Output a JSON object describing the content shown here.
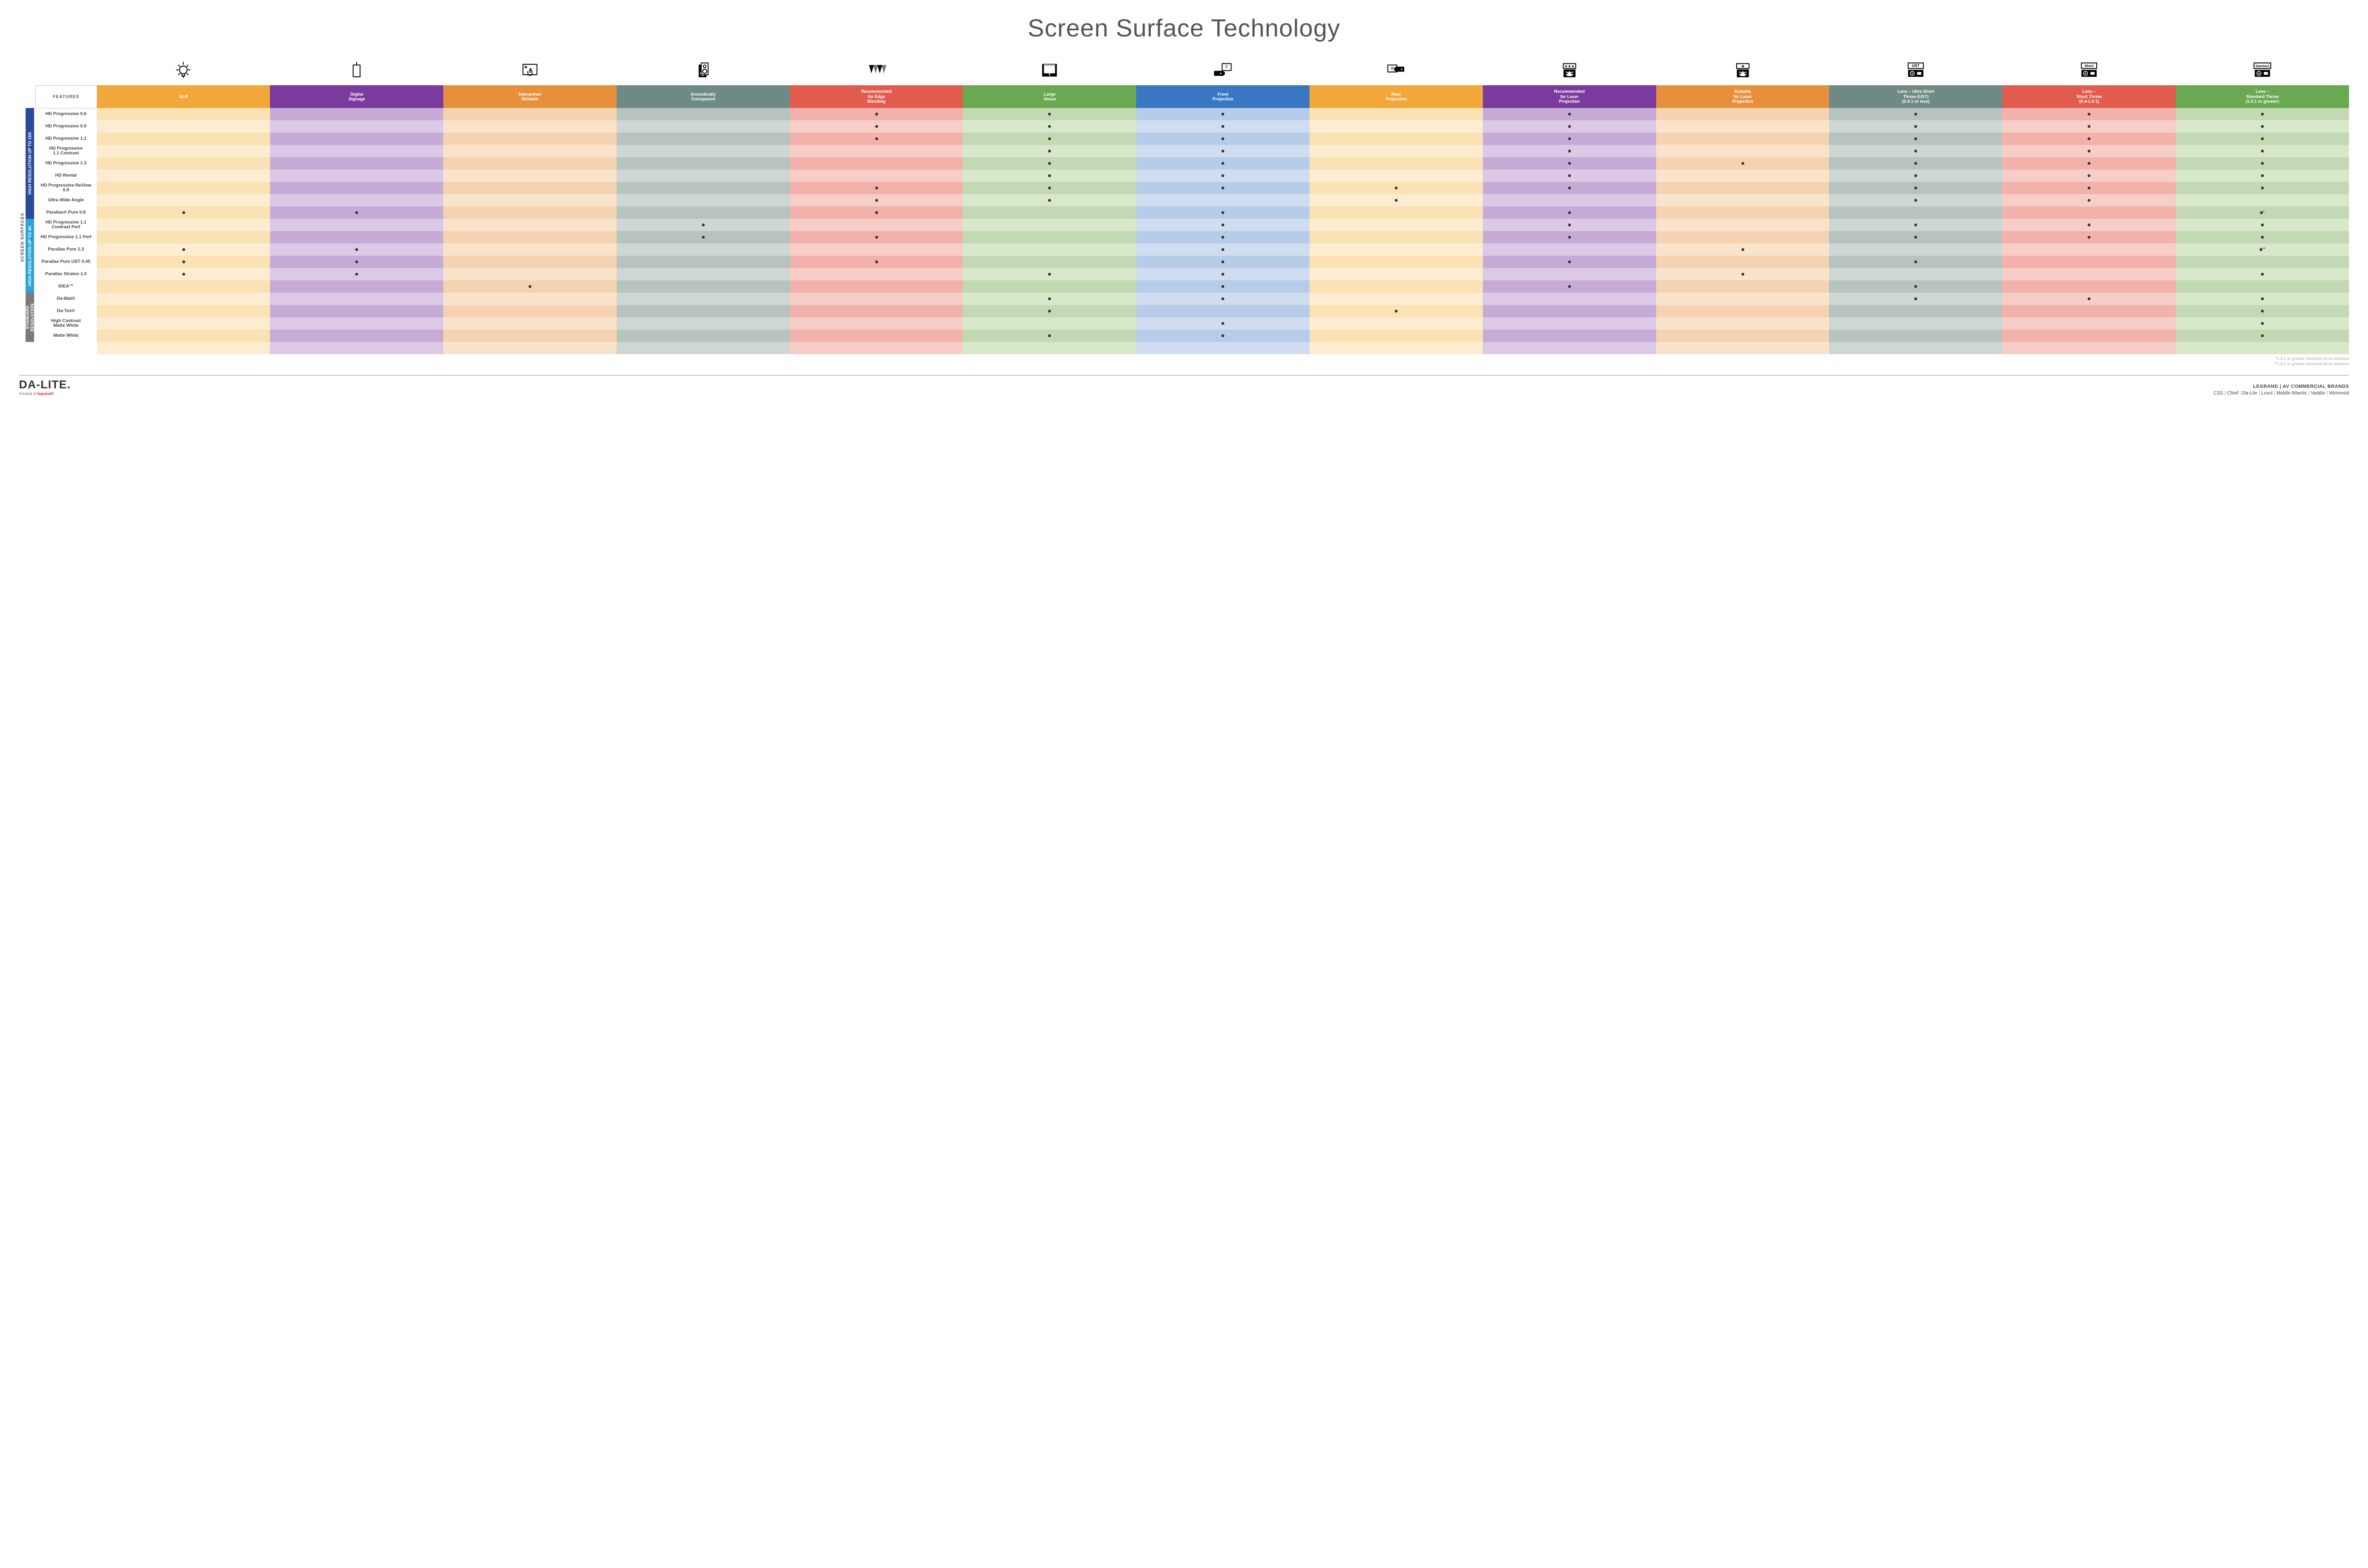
{
  "title": "Screen Surface Technology",
  "outer_label": "SCREEN SURFACES",
  "categories": [
    {
      "label": "HIGH RESOLUTION UP TO 16K",
      "bg": "#2a4b9b",
      "rows": 9
    },
    {
      "label": "HIGH RESOLUTION UP TO 4K",
      "bg": "#29a3d9",
      "rows": 6
    },
    {
      "label": "STANDARD\nRESOLUTION",
      "bg": "#7a7a7a",
      "rows": 4
    }
  ],
  "features_header": "FEATURES",
  "columns": [
    {
      "label": "ALR",
      "color": "#f2a73b",
      "light": "#fbe2b5",
      "lighter": "#fdeccf"
    },
    {
      "label": "Digital\nSignage",
      "color": "#7b3b9e",
      "light": "#c6abd6",
      "lighter": "#dbc9e6"
    },
    {
      "label": "Interactive/\nWritable",
      "color": "#e7903c",
      "light": "#f5d3b1",
      "lighter": "#f9e3cb"
    },
    {
      "label": "Acoustically\nTransparent",
      "color": "#6f8a84",
      "light": "#b6c3bf",
      "lighter": "#cfd7d4"
    },
    {
      "label": "Recommended\nfor Edge\nBlending",
      "color": "#e25b4f",
      "light": "#f2b1aa",
      "lighter": "#f7cdc8"
    },
    {
      "label": "Large\nVenue",
      "color": "#6aa851",
      "light": "#c3d9b3",
      "lighter": "#d9e7cb"
    },
    {
      "label": "Front\nProjection",
      "color": "#3a77c2",
      "light": "#b6cce8",
      "lighter": "#d0ddf0"
    },
    {
      "label": "Rear\nProjection",
      "color": "#f2a73b",
      "light": "#fbe2b5",
      "lighter": "#fdeccf"
    },
    {
      "label": "Recommended\nfor Laser\nProjection",
      "color": "#7b3b9e",
      "light": "#c6abd6",
      "lighter": "#dbc9e6"
    },
    {
      "label": "Suitable\nfor Laser\nProjection",
      "color": "#e7903c",
      "light": "#f5d3b1",
      "lighter": "#f9e3cb"
    },
    {
      "label": "Lens – Ultra Short\nThrow (UST)\n(0.4:1 or less)",
      "color": "#6f8a84",
      "light": "#b6c3bf",
      "lighter": "#cfd7d4"
    },
    {
      "label": "Lens –\nShort Throw\n(0.4-1.0:1)",
      "color": "#e25b4f",
      "light": "#f2b1aa",
      "lighter": "#f7cdc8"
    },
    {
      "label": "Lens –\nStandard Throw\n(1.0:1 or greater)",
      "color": "#6aa851",
      "light": "#c3d9b3",
      "lighter": "#d9e7cb"
    }
  ],
  "rows": [
    {
      "cat": 0,
      "name": "HD Progressive 0.6",
      "cells": [
        "",
        "",
        "",
        "",
        "•",
        "•",
        "•",
        "",
        "•",
        "",
        "•",
        "•",
        "•"
      ]
    },
    {
      "cat": 0,
      "name": "HD Progressive 0.9",
      "cells": [
        "",
        "",
        "",
        "",
        "•",
        "•",
        "•",
        "",
        "•",
        "",
        "•",
        "•",
        "•"
      ]
    },
    {
      "cat": 0,
      "name": "HD Progressive 1.1",
      "cells": [
        "",
        "",
        "",
        "",
        "•",
        "•",
        "•",
        "",
        "•",
        "",
        "•",
        "•",
        "•"
      ]
    },
    {
      "cat": 0,
      "name": "HD Progressive\n1.1 Contrast",
      "cells": [
        "",
        "",
        "",
        "",
        "",
        "•",
        "•",
        "",
        "•",
        "",
        "•",
        "•",
        "•"
      ]
    },
    {
      "cat": 0,
      "name": "HD Progressive 1.3",
      "cells": [
        "",
        "",
        "",
        "",
        "",
        "•",
        "•",
        "",
        "•",
        "•",
        "•",
        "•",
        "•"
      ]
    },
    {
      "cat": 0,
      "name": "HD Rental",
      "cells": [
        "",
        "",
        "",
        "",
        "",
        "•",
        "•",
        "",
        "•",
        "",
        "•",
        "•",
        "•"
      ]
    },
    {
      "cat": 0,
      "name": "HD Progressive ReView 0.9",
      "cells": [
        "",
        "",
        "",
        "",
        "•",
        "•",
        "•",
        "•",
        "•",
        "",
        "•",
        "•",
        "•"
      ]
    },
    {
      "cat": 0,
      "name": "Ultra Wide Angle",
      "cells": [
        "",
        "",
        "",
        "",
        "•",
        "•",
        "",
        "•",
        "",
        "",
        "•",
        "•",
        ""
      ]
    },
    {
      "cat": 0,
      "name": "Parallax® Pure 0.8",
      "cells": [
        "•",
        "•",
        "",
        "",
        "•",
        "",
        "•",
        "",
        "•",
        "",
        "",
        "",
        "•*"
      ]
    },
    {
      "cat": 1,
      "name": "HD Progressive 1.1\nContrast Perf",
      "cells": [
        "",
        "",
        "",
        "•",
        "",
        "",
        "•",
        "",
        "•",
        "",
        "•",
        "•",
        "•"
      ]
    },
    {
      "cat": 1,
      "name": "HD Progressive 1.1 Perf",
      "cells": [
        "",
        "",
        "",
        "•",
        "•",
        "",
        "•",
        "",
        "•",
        "",
        "•",
        "•",
        "•"
      ]
    },
    {
      "cat": 1,
      "name": "Parallax Pure 2.3",
      "cells": [
        "•",
        "•",
        "",
        "",
        "",
        "",
        "•",
        "",
        "",
        "•",
        "",
        "",
        "•**"
      ]
    },
    {
      "cat": 1,
      "name": "Parallax Pure UST 0.45",
      "cells": [
        "•",
        "•",
        "",
        "",
        "•",
        "",
        "•",
        "",
        "•",
        "",
        "•",
        "",
        ""
      ]
    },
    {
      "cat": 1,
      "name": "Parallax Stratos 1.0",
      "cells": [
        "•",
        "•",
        "",
        "",
        "",
        "•",
        "•",
        "",
        "",
        "•",
        "",
        "",
        "•"
      ]
    },
    {
      "cat": 1,
      "name": "IDEA™",
      "cells": [
        "",
        "",
        "•",
        "",
        "",
        "",
        "•",
        "",
        "•",
        "",
        "•",
        "",
        ""
      ]
    },
    {
      "cat": 2,
      "name": "Da-Mat®",
      "cells": [
        "",
        "",
        "",
        "",
        "",
        "•",
        "•",
        "",
        "",
        "",
        "•",
        "•",
        "•"
      ]
    },
    {
      "cat": 2,
      "name": "Da-Tex®",
      "cells": [
        "",
        "",
        "",
        "",
        "",
        "•",
        "",
        "•",
        "",
        "",
        "",
        "",
        "•"
      ]
    },
    {
      "cat": 2,
      "name": "High Contrast\nMatte White",
      "cells": [
        "",
        "",
        "",
        "",
        "",
        "",
        "•",
        "",
        "",
        "",
        "",
        "",
        "•"
      ]
    },
    {
      "cat": 2,
      "name": "Matte White",
      "cells": [
        "",
        "",
        "",
        "",
        "",
        "•",
        "•",
        "",
        "",
        "",
        "",
        "",
        "•"
      ]
    }
  ],
  "icons": [
    "bulb",
    "signage",
    "touch",
    "speaker",
    "blend",
    "venue",
    "front",
    "rear",
    "laser-rec",
    "laser-ok",
    "ust",
    "short",
    "standard"
  ],
  "footnotes": [
    "*1.5:1 or greater minimum throw distance",
    "**1.8:1 or greater minimum throw distance"
  ],
  "footer": {
    "brand": "DA-LITE.",
    "sub_prefix": "A brand of ",
    "sub_brand": "legrand®",
    "right_title": "LEGRAND | AV COMMERCIAL BRANDS",
    "brands": [
      "C2G",
      "Chief",
      "Da-Lite",
      "Luxul",
      "Middle Atlantic",
      "Vaddio",
      "Wiremold"
    ]
  }
}
